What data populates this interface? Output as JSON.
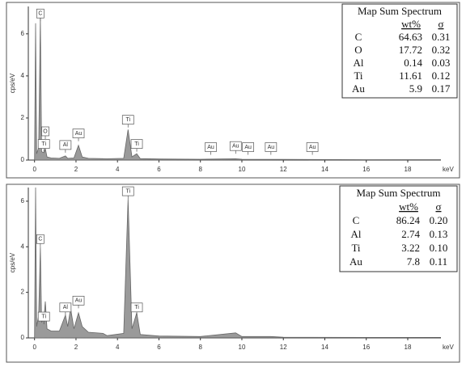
{
  "chart_data": [
    {
      "type": "area",
      "ylabel": "cps/eV",
      "xlabel": "keV",
      "color": "#9a9a9a",
      "xlim": [
        -0.3,
        19.6
      ],
      "ylim": [
        0,
        7.3
      ],
      "xticks": [
        0,
        2,
        4,
        6,
        8,
        10,
        12,
        14,
        16,
        18
      ],
      "yticks": [
        0,
        2,
        4,
        6
      ],
      "x": [
        0,
        0.05,
        0.1,
        0.2,
        0.28,
        0.34,
        0.45,
        0.52,
        0.6,
        0.8,
        1.2,
        1.49,
        1.6,
        1.9,
        2.12,
        2.3,
        2.6,
        3.5,
        4.3,
        4.51,
        4.7,
        4.93,
        5.1,
        6,
        8,
        9.7,
        10,
        12,
        16,
        19.6
      ],
      "values": [
        0,
        6.5,
        0.3,
        0.6,
        6.8,
        0.4,
        0.35,
        0.55,
        0.15,
        0.1,
        0.08,
        0.2,
        0.08,
        0.1,
        0.7,
        0.15,
        0.08,
        0.06,
        0.08,
        1.45,
        0.15,
        0.3,
        0.07,
        0.05,
        0.04,
        0.06,
        0.04,
        0.03,
        0.02,
        0.02
      ],
      "annotations": [
        {
          "text": "C",
          "x": 0.28,
          "y": 6.6
        },
        {
          "text": "O",
          "x": 0.52,
          "y": 1.0
        },
        {
          "text": "Ti",
          "x": 0.45,
          "y": 0.4
        },
        {
          "text": "Al",
          "x": 1.49,
          "y": 0.35
        },
        {
          "text": "Au",
          "x": 2.12,
          "y": 0.9
        },
        {
          "text": "Ti",
          "x": 4.51,
          "y": 1.55
        },
        {
          "text": "Ti",
          "x": 4.93,
          "y": 0.4
        },
        {
          "text": "Au",
          "x": 8.5,
          "y": 0.25
        },
        {
          "text": "Au",
          "x": 9.7,
          "y": 0.3
        },
        {
          "text": "Au",
          "x": 10.3,
          "y": 0.25
        },
        {
          "text": "Au",
          "x": 11.4,
          "y": 0.25
        },
        {
          "text": "Au",
          "x": 13.4,
          "y": 0.25
        }
      ],
      "table": {
        "title": "Map Sum Spectrum",
        "columns": [
          "wt%",
          "σ"
        ],
        "rows": [
          {
            "element": "C",
            "wt": "64.63",
            "sigma": "0.31"
          },
          {
            "element": "O",
            "wt": "17.72",
            "sigma": "0.32"
          },
          {
            "element": "Al",
            "wt": "0.14",
            "sigma": "0.03"
          },
          {
            "element": "Ti",
            "wt": "11.61",
            "sigma": "0.12"
          },
          {
            "element": "Au",
            "wt": "5.9",
            "sigma": "0.17"
          }
        ]
      }
    },
    {
      "type": "area",
      "ylabel": "cps/eV",
      "xlabel": "keV",
      "color": "#9a9a9a",
      "xlim": [
        -0.3,
        19.6
      ],
      "ylim": [
        0,
        6.6
      ],
      "xticks": [
        0,
        2,
        4,
        6,
        8,
        10,
        12,
        14,
        16,
        18
      ],
      "yticks": [
        0,
        2,
        4,
        6
      ],
      "x": [
        0,
        0.05,
        0.1,
        0.2,
        0.28,
        0.34,
        0.45,
        0.52,
        0.6,
        0.8,
        1.2,
        1.49,
        1.6,
        1.74,
        1.9,
        2.12,
        2.3,
        2.6,
        3.3,
        3.5,
        4.3,
        4.51,
        4.7,
        4.93,
        5.1,
        6,
        8,
        9.7,
        10,
        11.4,
        12,
        16,
        19.6
      ],
      "values": [
        0,
        6.6,
        0.5,
        1.0,
        4.0,
        0.7,
        0.8,
        1.6,
        0.4,
        0.3,
        0.3,
        1.0,
        0.5,
        1.3,
        0.4,
        1.1,
        0.5,
        0.25,
        0.2,
        0.1,
        0.2,
        6.1,
        0.4,
        1.1,
        0.15,
        0.08,
        0.06,
        0.22,
        0.06,
        0.06,
        0.03,
        0.02,
        0.02
      ],
      "annotations": [
        {
          "text": "C",
          "x": 0.28,
          "y": 4.0
        },
        {
          "text": "Ti",
          "x": 0.45,
          "y": 0.6
        },
        {
          "text": "Al",
          "x": 1.49,
          "y": 1.0
        },
        {
          "text": "Au",
          "x": 2.12,
          "y": 1.3
        },
        {
          "text": "Ti",
          "x": 4.51,
          "y": 6.1
        },
        {
          "text": "Ti",
          "x": 4.93,
          "y": 1.0
        }
      ],
      "table": {
        "title": "Map Sum Spectrum",
        "columns": [
          "wt%",
          "σ"
        ],
        "rows": [
          {
            "element": "C",
            "wt": "86.24",
            "sigma": "0.20"
          },
          {
            "element": "Al",
            "wt": "2.74",
            "sigma": "0.13"
          },
          {
            "element": "Ti",
            "wt": "3.22",
            "sigma": "0.10"
          },
          {
            "element": "Au",
            "wt": "7.8",
            "sigma": "0.11"
          }
        ]
      }
    }
  ]
}
